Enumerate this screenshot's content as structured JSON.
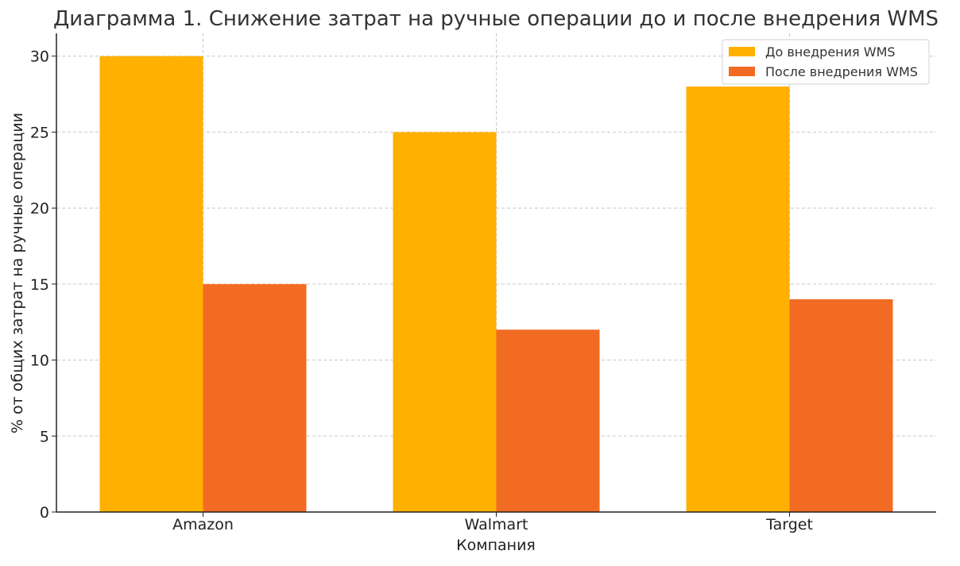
{
  "chart_data": {
    "type": "bar",
    "title": "Диаграмма 1. Снижение затрат на ручные операции до и после внедрения WMS",
    "xlabel": "Компания",
    "ylabel": "% от общих затрат на ручные операции",
    "categories": [
      "Amazon",
      "Walmart",
      "Target"
    ],
    "series": [
      {
        "name": "До внедрения WMS",
        "values": [
          30,
          25,
          28
        ],
        "color": "#FFB000"
      },
      {
        "name": "После внедрения WMS",
        "values": [
          15,
          12,
          14
        ],
        "color": "#F26B23"
      }
    ],
    "ylim": [
      0,
      31.5
    ],
    "yticks": [
      0,
      5,
      10,
      15,
      20,
      25,
      30
    ],
    "grid": true,
    "legend_position": "top-right"
  }
}
